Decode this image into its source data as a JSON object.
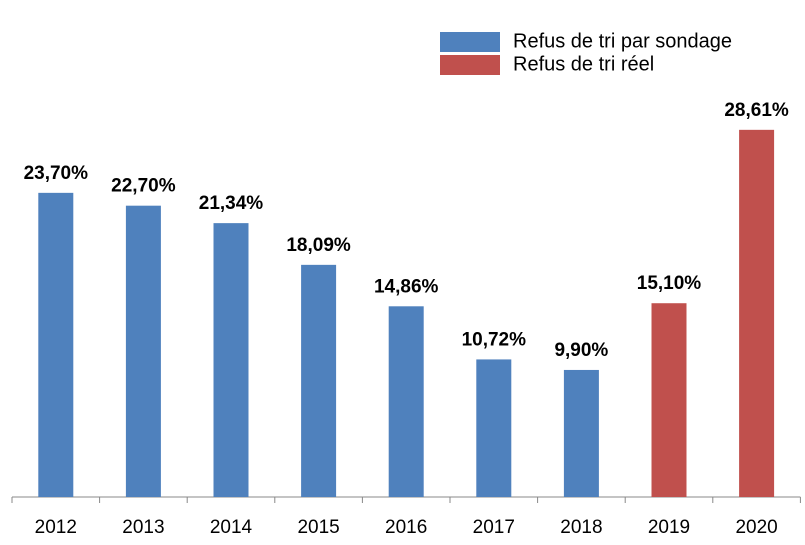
{
  "chart_data": {
    "type": "bar",
    "categories": [
      "2012",
      "2013",
      "2014",
      "2015",
      "2016",
      "2017",
      "2018",
      "2019",
      "2020"
    ],
    "series": [
      {
        "name": "Refus de tri par sondage",
        "color": "#4f81bd",
        "values": [
          23.7,
          22.7,
          21.34,
          18.09,
          14.86,
          10.72,
          9.9,
          null,
          null
        ],
        "value_labels": [
          "23,70%",
          "22,70%",
          "21,34%",
          "18,09%",
          "14,86%",
          "10,72%",
          "9,90%",
          null,
          null
        ]
      },
      {
        "name": "Refus de tri réel",
        "color": "#c0504d",
        "values": [
          null,
          null,
          null,
          null,
          null,
          null,
          null,
          15.1,
          28.61
        ],
        "value_labels": [
          null,
          null,
          null,
          null,
          null,
          null,
          null,
          "15,10%",
          "28,61%"
        ]
      }
    ],
    "ylim": [
      0,
      30
    ],
    "legend": "top-right"
  }
}
